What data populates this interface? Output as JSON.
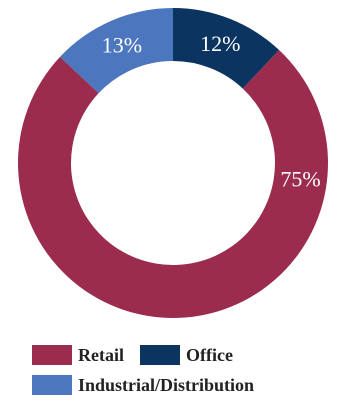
{
  "chart_data": {
    "type": "pie",
    "title": "",
    "donut": true,
    "legend_position": "bottom",
    "categories": [
      "Office",
      "Retail",
      "Industrial/Distribution"
    ],
    "values": [
      12,
      75,
      13
    ],
    "labels": [
      "12%",
      "75%",
      "13%"
    ],
    "colors": [
      "#0b3460",
      "#9b2c4e",
      "#4c76be"
    ]
  },
  "legend": {
    "items": [
      {
        "label": "Retail",
        "color": "#9b2c4e"
      },
      {
        "label": "Office",
        "color": "#0b3460"
      },
      {
        "label": "Industrial/Distribution",
        "color": "#4c76be"
      }
    ]
  }
}
